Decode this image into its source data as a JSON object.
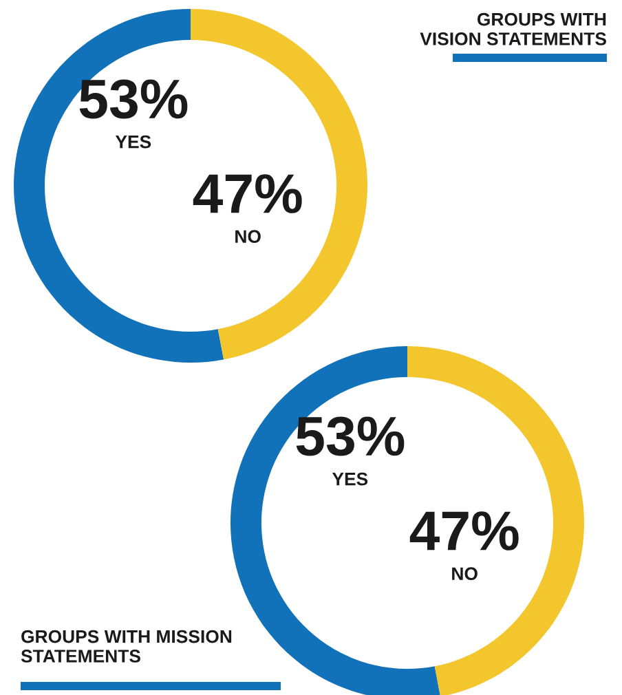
{
  "chart_data": [
    {
      "type": "donut",
      "title": "GROUPS WITH VISION STATEMENTS",
      "categories": [
        "YES",
        "NO"
      ],
      "values": [
        53,
        47
      ],
      "colors": [
        "#1172b9",
        "#f2c62c"
      ],
      "value_labels": [
        "53%",
        "47%"
      ]
    },
    {
      "type": "donut",
      "title": "GROUPS WITH MISSION STATEMENTS",
      "categories": [
        "YES",
        "NO"
      ],
      "values": [
        53,
        47
      ],
      "colors": [
        "#1172b9",
        "#f2c62c"
      ],
      "value_labels": [
        "53%",
        "47%"
      ]
    }
  ]
}
